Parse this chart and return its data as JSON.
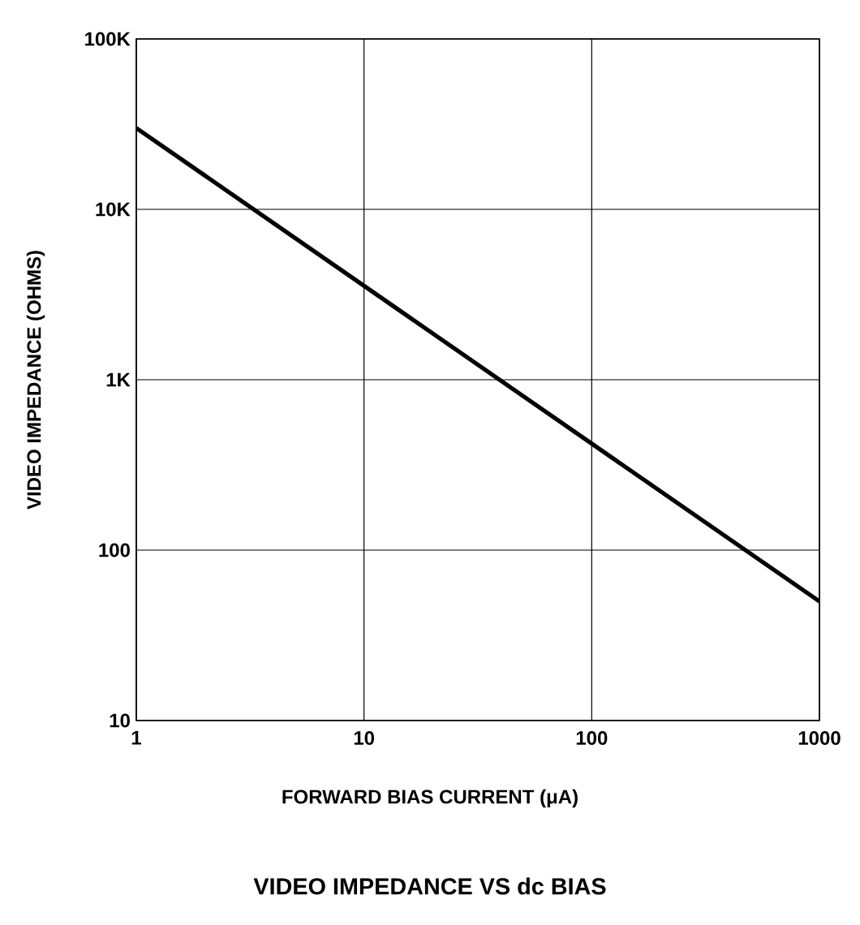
{
  "chart_data": {
    "type": "line",
    "title": "VIDEO IMPEDANCE VS dc BIAS",
    "xlabel": "FORWARD BIAS CURRENT (μA)",
    "ylabel": "VIDEO IMPEDANCE (OHMS)",
    "log": "xy",
    "grid": true,
    "xlim": [
      1,
      1000
    ],
    "ylim": [
      10,
      100000
    ],
    "xticks": [
      1,
      10,
      100,
      1000
    ],
    "yticks": [
      10,
      100,
      {
        "value": 1000,
        "label": "1K"
      },
      {
        "value": 10000,
        "label": "10K"
      },
      {
        "value": 100000,
        "label": "100K"
      }
    ],
    "series": [
      {
        "color": "#000000",
        "x": [
          1,
          1000
        ],
        "values": [
          30000,
          50
        ]
      }
    ]
  }
}
